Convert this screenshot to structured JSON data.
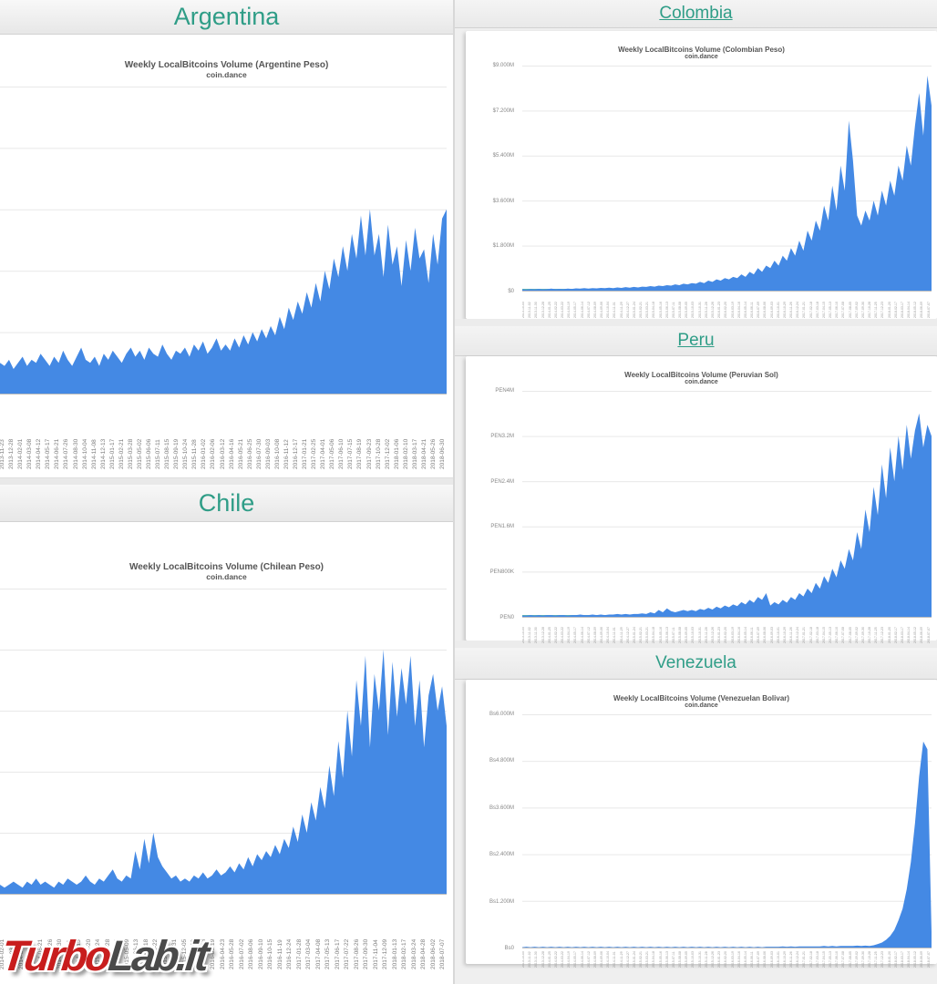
{
  "watermark": {
    "turbo": "Turbo",
    "lab": "Lab.it"
  },
  "colors": {
    "accent_teal": "#2f9d87",
    "area_blue": "#4489e4",
    "grid": "#e8e8e8",
    "axis_text": "#8a8a8a",
    "watermark_red": "#c81d1d",
    "watermark_gray": "#4a4a4a"
  },
  "charts": [
    {
      "id": "argentina",
      "column": "left",
      "country": "Argentina",
      "country_is_link": false,
      "chart_data": {
        "type": "area",
        "title": "Weekly LocalBitcoins Volume (Argentine Peso)",
        "subtitle": "coin.dance",
        "xlabel": "",
        "ylabel": "",
        "legend": "none",
        "grid": "on",
        "y_axis_visible": false,
        "values_unit": "percent_of_plot_height",
        "ylim": [
          0,
          100
        ],
        "x_labels": [
          "2013-11-23",
          "2013-12-28",
          "2014-02-01",
          "2014-03-08",
          "2014-04-12",
          "2014-05-17",
          "2014-06-21",
          "2014-07-26",
          "2014-08-30",
          "2014-10-04",
          "2014-11-08",
          "2014-12-13",
          "2015-01-17",
          "2015-02-21",
          "2015-03-28",
          "2015-05-02",
          "2015-06-06",
          "2015-07-11",
          "2015-08-15",
          "2015-09-19",
          "2015-10-24",
          "2015-11-28",
          "2016-01-02",
          "2016-02-06",
          "2016-03-12",
          "2016-04-16",
          "2016-05-21",
          "2016-06-25",
          "2016-07-30",
          "2016-09-03",
          "2016-10-08",
          "2016-11-12",
          "2016-12-17",
          "2017-01-21",
          "2017-02-25",
          "2017-04-01",
          "2017-05-06",
          "2017-06-10",
          "2017-07-15",
          "2017-08-19",
          "2017-09-23",
          "2017-10-28",
          "2017-12-02",
          "2018-01-06",
          "2018-02-10",
          "2018-03-17",
          "2018-04-21",
          "2018-05-26",
          "2018-06-30"
        ],
        "values": [
          10,
          9,
          11,
          8,
          10,
          12,
          9,
          11,
          10,
          13,
          11,
          9,
          12,
          10,
          14,
          11,
          9,
          12,
          15,
          11,
          10,
          12,
          9,
          13,
          11,
          14,
          12,
          10,
          13,
          15,
          12,
          14,
          11,
          15,
          13,
          12,
          16,
          13,
          11,
          14,
          13,
          15,
          12,
          16,
          14,
          17,
          13,
          15,
          18,
          14,
          16,
          14,
          18,
          15,
          19,
          16,
          20,
          17,
          21,
          18,
          22,
          19,
          25,
          21,
          28,
          24,
          30,
          26,
          33,
          28,
          36,
          30,
          40,
          34,
          44,
          38,
          48,
          40,
          52,
          44,
          58,
          45,
          60,
          45,
          52,
          38,
          55,
          42,
          48,
          35,
          50,
          40,
          54,
          44,
          47,
          36,
          52,
          42,
          57,
          60
        ]
      }
    },
    {
      "id": "colombia",
      "column": "right",
      "country": "Colombia",
      "country_is_link": true,
      "chart_data": {
        "type": "area",
        "title": "Weekly LocalBitcoins Volume (Colombian Peso)",
        "subtitle": "coin.dance",
        "xlabel": "",
        "ylabel": "",
        "legend": "none",
        "grid": "on",
        "values_unit": "millions_COP_weekly",
        "ylim": [
          0,
          9
        ],
        "y_ticks": [
          "$9.000M",
          "$7.200M",
          "$5.400M",
          "$3.600M",
          "$1.800M",
          "$0"
        ],
        "x_labels": [
          "2013-10-05",
          "2013-11-02",
          "2013-11-30",
          "2013-12-28",
          "2014-01-25",
          "2014-02-22",
          "2014-03-22",
          "2014-04-19",
          "2014-05-17",
          "2014-06-14",
          "2014-07-12",
          "2014-08-09",
          "2014-09-06",
          "2014-10-04",
          "2014-11-01",
          "2014-11-29",
          "2014-12-27",
          "2015-01-24",
          "2015-02-21",
          "2015-03-21",
          "2015-04-18",
          "2015-05-16",
          "2015-06-13",
          "2015-07-11",
          "2015-08-08",
          "2015-09-05",
          "2015-10-03",
          "2015-10-31",
          "2015-11-28",
          "2015-12-26",
          "2016-01-23",
          "2016-02-20",
          "2016-03-19",
          "2016-04-16",
          "2016-05-14",
          "2016-06-11",
          "2016-07-09",
          "2016-08-06",
          "2016-09-03",
          "2016-10-01",
          "2016-10-29",
          "2016-11-26",
          "2016-12-24",
          "2017-01-21",
          "2017-02-18",
          "2017-03-18",
          "2017-04-15",
          "2017-05-13",
          "2017-06-10",
          "2017-07-08",
          "2017-08-05",
          "2017-09-02",
          "2017-09-30",
          "2017-10-28",
          "2017-11-25",
          "2017-12-23",
          "2018-01-20",
          "2018-02-17",
          "2018-03-17",
          "2018-04-14",
          "2018-05-12",
          "2018-06-09",
          "2018-07-07"
        ],
        "values": [
          0.05,
          0.04,
          0.06,
          0.05,
          0.07,
          0.05,
          0.06,
          0.08,
          0.06,
          0.07,
          0.06,
          0.08,
          0.07,
          0.09,
          0.08,
          0.1,
          0.08,
          0.1,
          0.09,
          0.11,
          0.1,
          0.12,
          0.1,
          0.13,
          0.11,
          0.14,
          0.12,
          0.15,
          0.13,
          0.16,
          0.15,
          0.18,
          0.16,
          0.2,
          0.18,
          0.22,
          0.2,
          0.25,
          0.22,
          0.28,
          0.25,
          0.3,
          0.28,
          0.35,
          0.3,
          0.4,
          0.35,
          0.45,
          0.4,
          0.5,
          0.45,
          0.55,
          0.5,
          0.65,
          0.55,
          0.75,
          0.65,
          0.9,
          0.75,
          1.0,
          0.9,
          1.2,
          1.0,
          1.4,
          1.2,
          1.7,
          1.4,
          2.0,
          1.6,
          2.4,
          2.0,
          2.8,
          2.4,
          3.4,
          2.8,
          4.2,
          3.2,
          5.0,
          4.0,
          6.8,
          5.2,
          3.0,
          2.6,
          3.2,
          2.8,
          3.6,
          3.0,
          4.0,
          3.4,
          4.4,
          3.8,
          5.0,
          4.4,
          5.8,
          5.0,
          6.6,
          7.9,
          6.2,
          8.6,
          7.4
        ]
      }
    },
    {
      "id": "chile",
      "column": "left",
      "country": "Chile",
      "country_is_link": false,
      "chart_data": {
        "type": "area",
        "title": "Weekly LocalBitcoins Volume (Chilean Peso)",
        "subtitle": "coin.dance",
        "xlabel": "",
        "ylabel": "",
        "legend": "none",
        "grid": "on",
        "y_axis_visible": false,
        "values_unit": "percent_of_plot_height",
        "ylim": [
          0,
          100
        ],
        "x_labels": [
          "2014-02-01",
          "2014-03-08",
          "2014-04-12",
          "2014-05-17",
          "2014-06-21",
          "2014-07-26",
          "2014-08-30",
          "2014-10-11",
          "2014-11-15",
          "2014-12-20",
          "2015-01-24",
          "2015-02-28",
          "2015-04-04",
          "2015-05-09",
          "2015-06-13",
          "2015-07-18",
          "2015-08-22",
          "2015-09-26",
          "2015-10-31",
          "2015-12-05",
          "2016-01-09",
          "2016-02-13",
          "2016-03-19",
          "2016-04-23",
          "2016-05-28",
          "2016-07-02",
          "2016-08-06",
          "2016-09-10",
          "2016-10-15",
          "2016-11-19",
          "2016-12-24",
          "2017-01-28",
          "2017-03-04",
          "2017-04-08",
          "2017-05-13",
          "2017-06-17",
          "2017-07-22",
          "2017-08-26",
          "2017-09-30",
          "2017-11-04",
          "2017-12-09",
          "2018-01-13",
          "2018-02-17",
          "2018-03-24",
          "2018-04-28",
          "2018-06-02",
          "2018-07-07"
        ],
        "values": [
          3,
          2,
          3,
          4,
          3,
          2,
          4,
          3,
          5,
          3,
          4,
          3,
          2,
          4,
          3,
          5,
          4,
          3,
          4,
          6,
          4,
          3,
          5,
          4,
          6,
          8,
          5,
          4,
          6,
          5,
          14,
          8,
          18,
          10,
          20,
          12,
          9,
          7,
          5,
          6,
          4,
          5,
          4,
          6,
          5,
          7,
          5,
          6,
          8,
          6,
          7,
          9,
          7,
          10,
          8,
          12,
          9,
          13,
          11,
          14,
          12,
          16,
          13,
          18,
          15,
          22,
          17,
          26,
          20,
          30,
          24,
          35,
          28,
          42,
          32,
          50,
          38,
          60,
          45,
          70,
          55,
          78,
          48,
          72,
          60,
          80,
          52,
          76,
          58,
          74,
          62,
          78,
          55,
          70,
          48,
          65,
          72,
          60,
          68,
          55
        ]
      }
    },
    {
      "id": "peru",
      "column": "right",
      "country": "Peru",
      "country_is_link": true,
      "chart_data": {
        "type": "area",
        "title": "Weekly LocalBitcoins Volume (Peruvian Sol)",
        "subtitle": "coin.dance",
        "xlabel": "",
        "ylabel": "",
        "legend": "none",
        "grid": "on",
        "values_unit": "millions_PEN_weekly",
        "ylim": [
          0,
          4
        ],
        "y_ticks": [
          "PEN4M",
          "PEN3.2M",
          "PEN2.4M",
          "PEN1.6M",
          "PEN800K",
          "PEN0"
        ],
        "x_labels": [
          "2013-10-05",
          "2013-11-02",
          "2013-11-30",
          "2013-12-28",
          "2014-01-25",
          "2014-02-22",
          "2014-03-22",
          "2014-04-19",
          "2014-05-17",
          "2014-06-14",
          "2014-07-12",
          "2014-08-09",
          "2014-09-06",
          "2014-10-04",
          "2014-11-01",
          "2014-11-29",
          "2014-12-27",
          "2015-01-24",
          "2015-02-21",
          "2015-03-21",
          "2015-04-18",
          "2015-05-16",
          "2015-06-13",
          "2015-07-11",
          "2015-08-08",
          "2015-09-05",
          "2015-10-03",
          "2015-10-31",
          "2015-11-28",
          "2015-12-26",
          "2016-01-23",
          "2016-02-20",
          "2016-03-19",
          "2016-04-16",
          "2016-05-14",
          "2016-06-11",
          "2016-07-09",
          "2016-08-06",
          "2016-09-03",
          "2016-10-01",
          "2016-10-29",
          "2016-11-26",
          "2016-12-24",
          "2017-01-21",
          "2017-02-18",
          "2017-03-18",
          "2017-04-15",
          "2017-05-13",
          "2017-06-10",
          "2017-07-08",
          "2017-08-05",
          "2017-09-02",
          "2017-09-30",
          "2017-10-28",
          "2017-11-25",
          "2017-12-23",
          "2018-01-20",
          "2018-02-17",
          "2018-03-17",
          "2018-04-14",
          "2018-05-12",
          "2018-06-09",
          "2018-07-07"
        ],
        "values": [
          0.02,
          0.02,
          0.03,
          0.02,
          0.03,
          0.02,
          0.03,
          0.03,
          0.02,
          0.03,
          0.03,
          0.02,
          0.03,
          0.03,
          0.04,
          0.03,
          0.03,
          0.04,
          0.03,
          0.04,
          0.03,
          0.04,
          0.04,
          0.05,
          0.04,
          0.05,
          0.04,
          0.05,
          0.05,
          0.06,
          0.05,
          0.08,
          0.06,
          0.12,
          0.08,
          0.15,
          0.1,
          0.08,
          0.1,
          0.12,
          0.1,
          0.12,
          0.1,
          0.14,
          0.12,
          0.16,
          0.13,
          0.18,
          0.15,
          0.2,
          0.17,
          0.22,
          0.19,
          0.26,
          0.22,
          0.3,
          0.25,
          0.35,
          0.3,
          0.42,
          0.2,
          0.26,
          0.22,
          0.3,
          0.25,
          0.35,
          0.3,
          0.42,
          0.36,
          0.5,
          0.42,
          0.6,
          0.5,
          0.72,
          0.6,
          0.85,
          0.7,
          1.0,
          0.85,
          1.2,
          1.0,
          1.5,
          1.2,
          1.9,
          1.5,
          2.3,
          1.8,
          2.7,
          2.1,
          3.0,
          2.4,
          3.2,
          2.6,
          3.4,
          2.8,
          3.3,
          3.6,
          3.0,
          3.4,
          3.2
        ]
      }
    },
    {
      "id": "venezuela",
      "column": "right",
      "country": "Venezuela",
      "country_is_link": false,
      "chart_data": {
        "type": "area",
        "title": "Weekly LocalBitcoins Volume (Venezuelan Bolivar)",
        "subtitle": "coin.dance",
        "xlabel": "",
        "ylabel": "",
        "legend": "none",
        "grid": "on",
        "values_unit": "millions_VEF_weekly",
        "ylim": [
          0,
          6
        ],
        "y_ticks": [
          "Bs6.000M",
          "Bs4.800M",
          "Bs3.600M",
          "Bs2.400M",
          "Bs1.200M",
          "Bs0"
        ],
        "x_labels": [
          "2013-10-05",
          "2013-11-02",
          "2013-11-30",
          "2013-12-28",
          "2014-01-25",
          "2014-02-22",
          "2014-03-22",
          "2014-04-19",
          "2014-05-17",
          "2014-06-14",
          "2014-07-12",
          "2014-08-09",
          "2014-09-06",
          "2014-10-04",
          "2014-11-01",
          "2014-11-29",
          "2014-12-27",
          "2015-01-24",
          "2015-02-21",
          "2015-03-21",
          "2015-04-18",
          "2015-05-16",
          "2015-06-13",
          "2015-07-11",
          "2015-08-08",
          "2015-09-05",
          "2015-10-03",
          "2015-10-31",
          "2015-11-28",
          "2015-12-26",
          "2016-01-23",
          "2016-02-20",
          "2016-03-19",
          "2016-04-16",
          "2016-05-14",
          "2016-06-11",
          "2016-07-09",
          "2016-08-06",
          "2016-09-03",
          "2016-10-01",
          "2016-10-29",
          "2016-11-26",
          "2016-12-24",
          "2017-01-21",
          "2017-02-18",
          "2017-03-18",
          "2017-04-15",
          "2017-05-13",
          "2017-06-10",
          "2017-07-08",
          "2017-08-05",
          "2017-09-02",
          "2017-09-30",
          "2017-10-28",
          "2017-11-25",
          "2017-12-23",
          "2018-01-20",
          "2018-02-17",
          "2018-03-17",
          "2018-04-14",
          "2018-05-12",
          "2018-06-09",
          "2018-07-07"
        ],
        "values": [
          0.01,
          0.02,
          0.01,
          0.02,
          0.01,
          0.02,
          0.01,
          0.02,
          0.01,
          0.02,
          0.01,
          0.02,
          0.01,
          0.02,
          0.01,
          0.02,
          0.01,
          0.02,
          0.01,
          0.02,
          0.01,
          0.02,
          0.01,
          0.02,
          0.01,
          0.02,
          0.01,
          0.02,
          0.01,
          0.02,
          0.01,
          0.02,
          0.01,
          0.02,
          0.01,
          0.02,
          0.01,
          0.02,
          0.01,
          0.02,
          0.01,
          0.02,
          0.01,
          0.02,
          0.01,
          0.02,
          0.01,
          0.02,
          0.01,
          0.02,
          0.01,
          0.02,
          0.01,
          0.02,
          0.01,
          0.02,
          0.01,
          0.02,
          0.01,
          0.02,
          0.02,
          0.02,
          0.02,
          0.03,
          0.02,
          0.03,
          0.02,
          0.03,
          0.03,
          0.03,
          0.03,
          0.03,
          0.03,
          0.04,
          0.03,
          0.04,
          0.03,
          0.04,
          0.04,
          0.04,
          0.04,
          0.05,
          0.04,
          0.05,
          0.04,
          0.06,
          0.09,
          0.13,
          0.2,
          0.3,
          0.45,
          0.7,
          1.0,
          1.5,
          2.2,
          3.2,
          4.4,
          5.3,
          5.1,
          0.4
        ]
      }
    }
  ]
}
